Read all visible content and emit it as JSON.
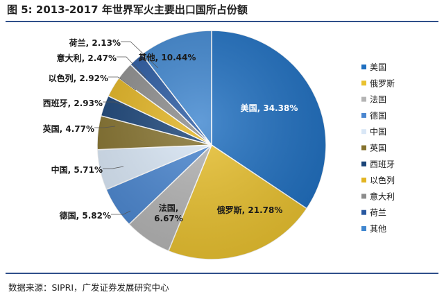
{
  "header": {
    "title": "图 5:  2013-2017 年世界军火主要出口国所占份额"
  },
  "footer": {
    "source": "数据来源：SIPRI，广发证券发展研究中心"
  },
  "colors": {
    "rule": "#2f4f8a"
  },
  "chart_data": {
    "type": "pie",
    "title": "",
    "legend_position": "right",
    "slices": [
      {
        "name": "美国",
        "value": 34.38,
        "label": "美国, 34.38%",
        "color": "#1f6fc0"
      },
      {
        "name": "俄罗斯",
        "value": 21.78,
        "label": "俄罗斯, 21.78%",
        "color": "#e9c12f"
      },
      {
        "name": "法国",
        "value": 6.67,
        "label": "法国,\n6.67%",
        "color": "#b4b4b4"
      },
      {
        "name": "德国",
        "value": 5.82,
        "label": "德国, 5.82%",
        "color": "#4a86d0"
      },
      {
        "name": "中国",
        "value": 5.71,
        "label": "中国, 5.71%",
        "color": "#d9e7f6"
      },
      {
        "name": "英国",
        "value": 4.77,
        "label": "英国, 4.77%",
        "color": "#85722e"
      },
      {
        "name": "西班牙",
        "value": 2.93,
        "label": "西班牙, 2.93%",
        "color": "#1a4478"
      },
      {
        "name": "以色列",
        "value": 2.92,
        "label": "以色列, 2.92%",
        "color": "#e2b422"
      },
      {
        "name": "意大利",
        "value": 2.47,
        "label": "意大利, 2.47%",
        "color": "#8c8c8c"
      },
      {
        "name": "荷兰",
        "value": 2.13,
        "label": "荷兰, 2.13%",
        "color": "#2858a0"
      },
      {
        "name": "其他",
        "value": 10.44,
        "label": "其他, 10.44%",
        "color": "#3f86cf"
      }
    ]
  }
}
